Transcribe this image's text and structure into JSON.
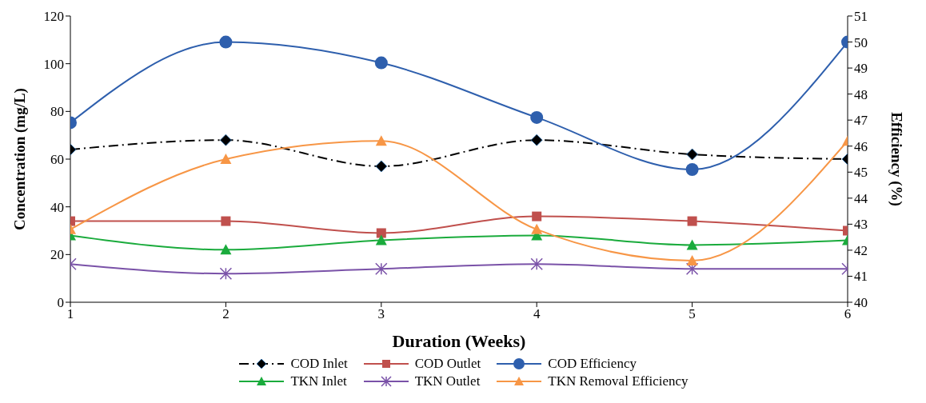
{
  "chart_data": {
    "type": "line",
    "xlabel": "Duration (Weeks)",
    "ylabel": "Concentration (mg/L)",
    "y2label": "Efficiency (%)",
    "x": [
      1,
      2,
      3,
      4,
      5,
      6
    ],
    "xlim": [
      1,
      6
    ],
    "xticks": [
      1,
      2,
      3,
      4,
      5,
      6
    ],
    "ylim": [
      0,
      120
    ],
    "yticks": [
      0,
      20,
      40,
      60,
      80,
      100,
      120
    ],
    "y2lim": [
      40,
      51
    ],
    "y2ticks": [
      40,
      41,
      42,
      43,
      44,
      45,
      46,
      47,
      48,
      49,
      50,
      51
    ],
    "grid": false,
    "legend": "bottom",
    "series": [
      {
        "name": "COD Inlet",
        "color": "#000000",
        "line_style": "dashdot",
        "marker": "diamond",
        "values": [
          64,
          68,
          57,
          68,
          62,
          60
        ]
      },
      {
        "name": "COD Outlet",
        "color": "#c0504d",
        "marker": "square",
        "values": [
          34,
          34,
          29,
          36,
          34,
          30
        ]
      },
      {
        "name": "COD Efficiency",
        "color": "#2e5fad",
        "marker": "circle",
        "axis": "y2",
        "values": [
          46.9,
          50.0,
          49.2,
          47.1,
          45.1,
          50.0
        ]
      },
      {
        "name": "TKN Inlet",
        "color": "#1aab3c",
        "marker": "triangle",
        "values": [
          28,
          22,
          26,
          28,
          24,
          26
        ]
      },
      {
        "name": "TKN Outlet",
        "color": "#7a52a8",
        "marker": "cross",
        "values": [
          16,
          12,
          14,
          16,
          14,
          14
        ]
      },
      {
        "name": "TKN Removal Efficiency",
        "color": "#f79646",
        "marker": "triangle",
        "axis": "y2",
        "values": [
          42.8,
          45.5,
          46.2,
          42.8,
          41.6,
          46.2
        ]
      }
    ]
  }
}
